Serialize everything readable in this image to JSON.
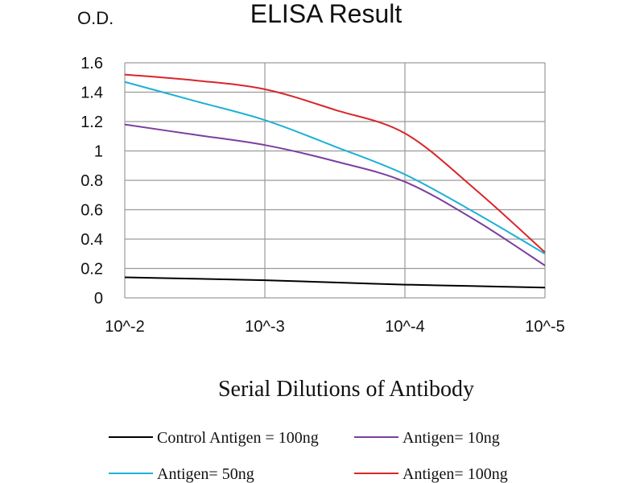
{
  "chart_data": {
    "type": "line",
    "title": "ELISA Result",
    "ylabel": "O.D.",
    "xlabel": "Serial Dilutions of Antibody",
    "x_scale": "log",
    "x_reversed": true,
    "x": [
      0.01,
      0.00316,
      0.001,
      0.000316,
      0.0001,
      3.16e-05,
      1e-05
    ],
    "xlim": [
      0.01,
      1e-05
    ],
    "x_tick_labels": [
      "10^-2",
      "10^-3",
      "10^-4",
      "10^-5"
    ],
    "ylim": [
      0,
      1.6
    ],
    "y_ticks": [
      0,
      0.2,
      0.4,
      0.6,
      0.8,
      1,
      1.2,
      1.4,
      1.6
    ],
    "y_tick_labels": [
      "0",
      "0.2",
      "0.4",
      "0.6",
      "0.8",
      "1",
      "1.2",
      "1.4",
      "1.6"
    ],
    "grid": true,
    "legend_placement": "bottom",
    "series": [
      {
        "name": "Control Antigen = 100ng",
        "color": "#000000",
        "values": [
          0.14,
          0.13,
          0.12,
          0.105,
          0.09,
          0.08,
          0.07
        ]
      },
      {
        "name": "Antigen= 10ng",
        "color": "#7b3f9e",
        "values": [
          1.18,
          1.11,
          1.04,
          0.93,
          0.79,
          0.53,
          0.22
        ]
      },
      {
        "name": "Antigen= 50ng",
        "color": "#1fb0d6",
        "values": [
          1.47,
          1.34,
          1.21,
          1.03,
          0.84,
          0.58,
          0.3
        ]
      },
      {
        "name": "Antigen= 100ng",
        "color": "#d9262a",
        "values": [
          1.52,
          1.48,
          1.42,
          1.28,
          1.12,
          0.74,
          0.31
        ]
      }
    ]
  }
}
